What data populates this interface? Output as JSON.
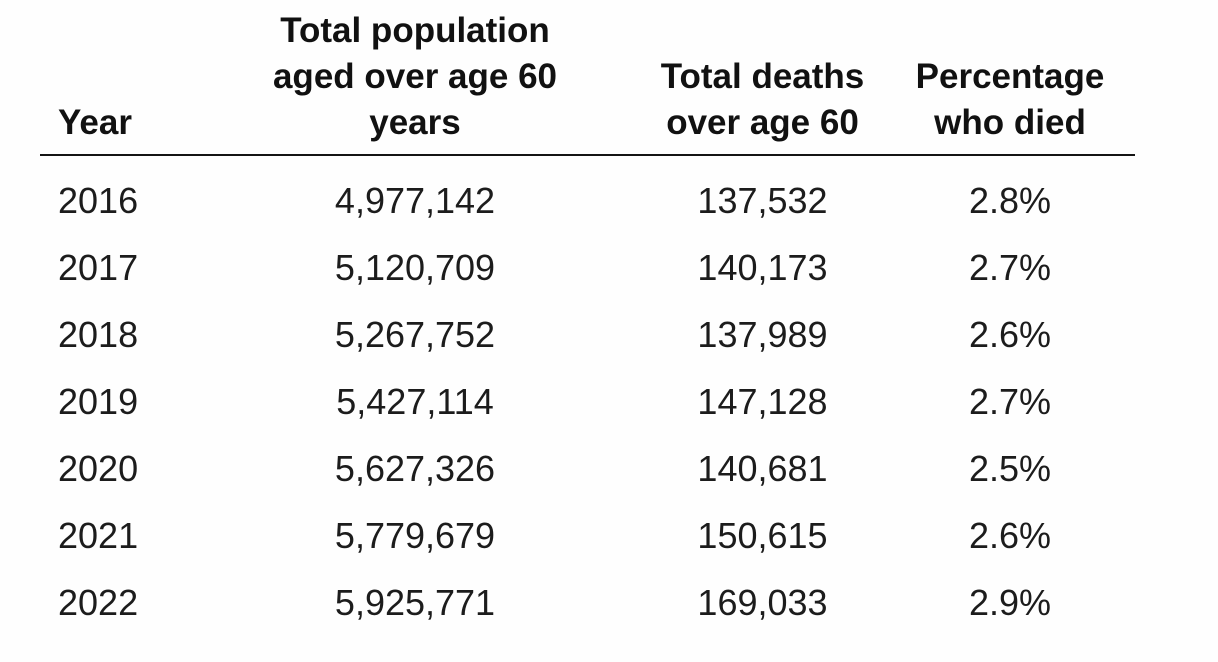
{
  "page": {
    "background": "#fefefe",
    "text_color": "#1c1c1c",
    "header_text_color": "#111111",
    "rule_color": "#141414"
  },
  "table": {
    "columns": [
      {
        "id": "year",
        "label": "Year",
        "lines": [
          "Year"
        ],
        "align": "left"
      },
      {
        "id": "population",
        "label": "Total population aged over age 60 years",
        "lines": [
          "Total population",
          "aged over age 60",
          "years"
        ],
        "align": "center"
      },
      {
        "id": "deaths",
        "label": "Total deaths over age 60",
        "lines": [
          "Total deaths",
          "over age 60"
        ],
        "align": "center"
      },
      {
        "id": "percentage",
        "label": "Percentage who died",
        "lines": [
          "Percentage",
          "who died"
        ],
        "align": "center"
      }
    ],
    "rows": [
      {
        "year": "2016",
        "population": "4,977,142",
        "deaths": "137,532",
        "percentage": "2.8%"
      },
      {
        "year": "2017",
        "population": "5,120,709",
        "deaths": "140,173",
        "percentage": "2.7%"
      },
      {
        "year": "2018",
        "population": "5,267,752",
        "deaths": "137,989",
        "percentage": "2.6%"
      },
      {
        "year": "2019",
        "population": "5,427,114",
        "deaths": "147,128",
        "percentage": "2.7%"
      },
      {
        "year": "2020",
        "population": "5,627,326",
        "deaths": "140,681",
        "percentage": "2.5%"
      },
      {
        "year": "2021",
        "population": "5,779,679",
        "deaths": "150,615",
        "percentage": "2.6%"
      },
      {
        "year": "2022",
        "population": "5,925,771",
        "deaths": "169,033",
        "percentage": "2.9%"
      }
    ]
  },
  "chart_data": {
    "type": "table",
    "title": "",
    "columns": [
      "Year",
      "Total population aged over age 60 years",
      "Total deaths over age 60",
      "Percentage who died"
    ],
    "rows": [
      [
        "2016",
        "4,977,142",
        "137,532",
        "2.8%"
      ],
      [
        "2017",
        "5,120,709",
        "140,173",
        "2.7%"
      ],
      [
        "2018",
        "5,267,752",
        "137,989",
        "2.6%"
      ],
      [
        "2019",
        "5,427,114",
        "147,128",
        "2.7%"
      ],
      [
        "2020",
        "5,627,326",
        "140,681",
        "2.5%"
      ],
      [
        "2021",
        "5,779,679",
        "150,615",
        "2.6%"
      ],
      [
        "2022",
        "5,925,771",
        "169,033",
        "2.9%"
      ]
    ],
    "numeric": {
      "year": [
        2016,
        2017,
        2018,
        2019,
        2020,
        2021,
        2022
      ],
      "total_population_over_60": [
        4977142,
        5120709,
        5267752,
        5427114,
        5627326,
        5779679,
        5925771
      ],
      "total_deaths_over_60": [
        137532,
        140173,
        137989,
        147128,
        140681,
        150615,
        169033
      ],
      "percentage_who_died": [
        2.8,
        2.7,
        2.6,
        2.7,
        2.5,
        2.6,
        2.9
      ]
    }
  }
}
